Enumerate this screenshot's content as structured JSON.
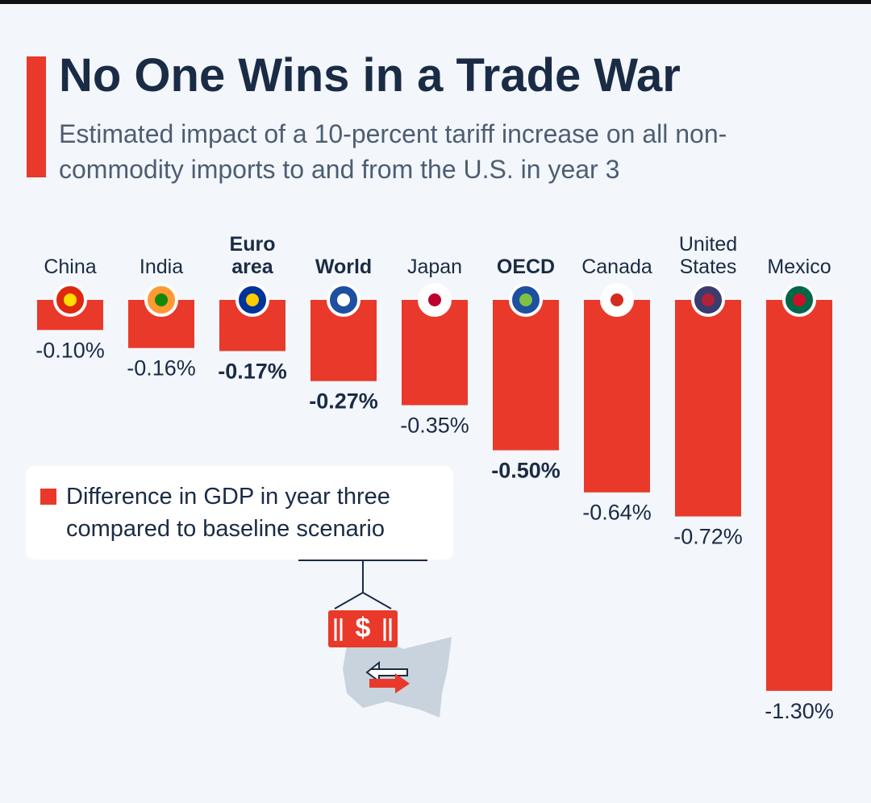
{
  "chart_data": {
    "type": "bar",
    "title": "No One Wins in a Trade War",
    "subtitle": "Estimated impact of a 10-percent tariff increase on all non-commodity imports to and from the U.S. in year 3",
    "categories": [
      "China",
      "India",
      "Euro area",
      "World",
      "Japan",
      "OECD",
      "Canada",
      "United States",
      "Mexico"
    ],
    "bold": [
      false,
      false,
      true,
      true,
      false,
      true,
      false,
      false,
      false
    ],
    "series": [
      {
        "name": "Difference in GDP in year three compared to baseline scenario",
        "color": "#e8392a",
        "values": [
          -0.1,
          -0.16,
          -0.17,
          -0.27,
          -0.35,
          -0.5,
          -0.64,
          -0.72,
          -1.3
        ],
        "value_labels": [
          "-0.10%",
          "-0.16%",
          "-0.17%",
          "-0.27%",
          "-0.35%",
          "-0.50%",
          "-0.64%",
          "-0.72%",
          "-1.30%"
        ]
      }
    ]
  }
}
